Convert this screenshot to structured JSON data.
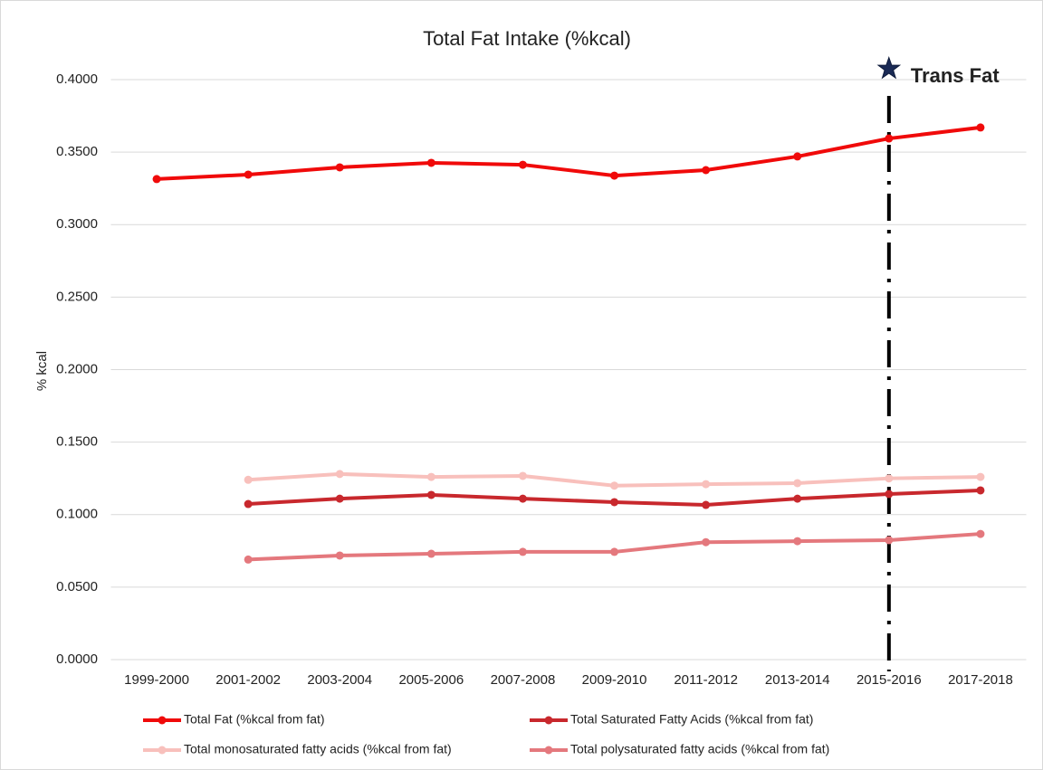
{
  "chart_data": {
    "type": "line",
    "title": "Total Fat Intake (%kcal)",
    "ylabel": "% kcal",
    "categories": [
      "1999-2000",
      "2001-2002",
      "2003-2004",
      "2005-2006",
      "2007-2008",
      "2009-2010",
      "2011-2012",
      "2013-2014",
      "2015-2016",
      "2017-2018"
    ],
    "series": [
      {
        "name": "Total Fat (%kcal from fat)",
        "color": "#f00a0a",
        "values": [
          0.3314,
          0.3345,
          0.3395,
          0.3426,
          0.3413,
          0.3338,
          0.3376,
          0.347,
          0.3594,
          0.367
        ]
      },
      {
        "name": "Total Saturated Fatty Acids (%kcal from fat)",
        "color": "#c8282d",
        "values": [
          null,
          0.1073,
          0.111,
          0.1136,
          0.111,
          0.1086,
          0.1067,
          0.111,
          0.1142,
          0.1167
        ]
      },
      {
        "name": "Total monosaturated fatty acids (%kcal from fat)",
        "color": "#f8c0bc",
        "values": [
          null,
          0.124,
          0.128,
          0.126,
          0.1267,
          0.12,
          0.121,
          0.1217,
          0.125,
          0.126
        ]
      },
      {
        "name": "Total polysaturated fatty acids (%kcal from fat)",
        "color": "#e4787d",
        "values": [
          null,
          0.069,
          0.0718,
          0.073,
          0.0743,
          0.0743,
          0.081,
          0.0817,
          0.0824,
          0.0867
        ]
      }
    ],
    "ylim": [
      0,
      0.4
    ],
    "yticks": [
      {
        "value": 0,
        "label": "0.0000"
      },
      {
        "value": 0.05,
        "label": "0.0500"
      },
      {
        "value": 0.1,
        "label": "0.1000"
      },
      {
        "value": 0.15,
        "label": "0.1500"
      },
      {
        "value": 0.2,
        "label": "0.2000"
      },
      {
        "value": 0.25,
        "label": "0.2500"
      },
      {
        "value": 0.3,
        "label": "0.3000"
      },
      {
        "value": 0.35,
        "label": "0.3500"
      },
      {
        "value": 0.4,
        "label": "0.4000"
      }
    ],
    "grid": true,
    "legend": "bottom",
    "annotation": {
      "text": "Trans Fat",
      "x": "2015-2016"
    }
  }
}
